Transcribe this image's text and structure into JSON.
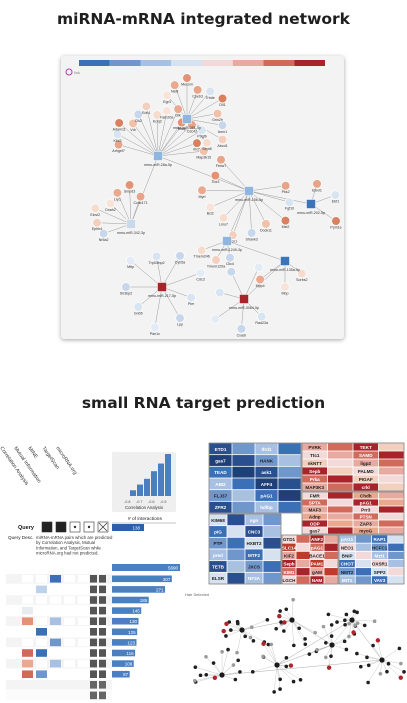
{
  "headings": {
    "network_title": "miRNA-mRNA integrated network",
    "prediction_title": "small RNA target prediction"
  },
  "network": {
    "corner_label": "link",
    "colorbar": [
      "#3b6fb6",
      "#6f97cc",
      "#a8c1e2",
      "#d6e2f0",
      "#f2dada",
      "#e8a9a0",
      "#d26a5c",
      "#a8242b"
    ],
    "hubs": [
      {
        "id": "h1",
        "label": "mmu-miR-28a-5p",
        "color": "#8fb6de"
      },
      {
        "id": "h2",
        "label": "mmu-miR-351-5p",
        "color": "#8fb6de"
      },
      {
        "id": "h3",
        "label": "mmu-miR-15b-5p",
        "color": "#8fb6de"
      },
      {
        "id": "h4",
        "label": "mmu-miR-342-3p",
        "color": "#c9d9ec"
      },
      {
        "id": "h5",
        "label": "mmu-miR-1249-3p",
        "color": "#8fb6de"
      },
      {
        "id": "h6",
        "label": "mmu-miR-202-5p",
        "color": "#3b74b8"
      },
      {
        "id": "h7",
        "label": "mmu-miR-135a-5p",
        "color": "#3b74b8"
      },
      {
        "id": "h8",
        "label": "mmu-miR-217-5p",
        "color": "#a8242b"
      },
      {
        "id": "h9",
        "label": "mmu-miR-3064-5p",
        "color": "#a8242b"
      }
    ],
    "genes": [
      "Arhgef7",
      "Klhl3",
      "Adam11",
      "Vdr",
      "Clk2",
      "Edn1",
      "Kcnj2",
      "Fam20a",
      "Dlk",
      "Mtap",
      "Cdc42",
      "Pdgfb",
      "Ifrd1",
      "Map3k15",
      "Egr3",
      "Nebl",
      "Mecom",
      "Cpeb3",
      "Trhde",
      "Dll1",
      "Grin2b",
      "Amn1",
      "Abcd1",
      "Sept8",
      "Pks2",
      "Fgf10",
      "Mzt2",
      "Dock11",
      "Shank3",
      "Hcn1",
      "Lmo7",
      "Bcl2",
      "Myrf",
      "Tbx3",
      "Fbxw7",
      "Nr5a2",
      "Ephb4",
      "Elovl2",
      "Dnah2",
      "Lrp1",
      "Smpd3",
      "Ccdc171",
      "Clic4",
      "Tmem120a",
      "Tmem246",
      "Elovl1",
      "Ebf1",
      "Ppm1e",
      "Sorbs2",
      "Mbp",
      "Mpp4",
      "Pler",
      "Lpp",
      "Pde1c",
      "Gnb5",
      "Sh3bp2",
      "Mttp",
      "Trp53inp2",
      "Cyb5a",
      "Cdc3",
      "Rad23a",
      "Cxadr"
    ]
  },
  "upset": {
    "column_labels": [
      "Correlation Analysis",
      "Mutual Information",
      "MINE",
      "TargetScan",
      "microRNA.org"
    ],
    "query_label": "Query",
    "query_desc_label": "Query Desc.",
    "query_desc": "miRNA-mRNA pairs which are predicted by Correlation Analysis, Mutual Information, and TargetScan while microRNA.org had not predicted.",
    "interactions_label": "# of interactions",
    "histogram_label": "Correlation Analysis",
    "histogram_ticks": [
      "-0.8",
      "-0.7",
      "-0.6",
      "-0.5"
    ],
    "histogram_values": [
      3,
      6,
      9,
      13,
      17,
      22
    ],
    "query_bar_value": "138",
    "total_value": "5690",
    "bars": [
      {
        "value": "307",
        "fill": 0.88
      },
      {
        "value": "271",
        "fill": 0.78
      },
      {
        "value": "185",
        "fill": 0.54
      },
      {
        "value": "145",
        "fill": 0.43
      },
      {
        "value": "130",
        "fill": 0.39
      },
      {
        "value": "125",
        "fill": 0.37
      },
      {
        "value": "123",
        "fill": 0.36
      },
      {
        "value": "115",
        "fill": 0.34
      },
      {
        "value": "108",
        "fill": 0.32
      },
      {
        "value": "87",
        "fill": 0.26
      }
    ]
  },
  "treemap": {
    "genes": [
      "ETD1",
      "Ifrd1",
      "gas7",
      "HANK",
      "TEAD",
      "ask1",
      "ABI2",
      "AFF4",
      "FLJ37",
      "pAG1",
      "ZFR2",
      "hdlbp",
      "PVRK",
      "TEKT",
      "Ttc1",
      "SAMD",
      "nkNTT",
      "ligp2",
      "Sepb",
      "PALMD",
      "Prka",
      "PIGAF",
      "MAP3K3",
      "crkl",
      "FMR",
      "Chdh",
      "SPTA",
      "pAG1",
      "MAF3",
      "Prr3",
      "Adnp",
      "PTSN",
      "ODP",
      "ZAP3",
      "gas7",
      "myoG",
      "KIM68",
      "ngn",
      "pIG",
      "CNC3",
      "PTP",
      "HXBT2",
      "pred",
      "MTF2",
      "TETB",
      "JXCS",
      "ELSR",
      "NF3A",
      "GTD1",
      "ANF2",
      "SLC14",
      "pAG1",
      "KIF2",
      "BACE1",
      "Sepb",
      "PAM1",
      "KIM1",
      "gAM",
      "LGCH",
      "NAM",
      "pAG1",
      "RAP1",
      "NEO1",
      "HCFC1",
      "BNIP",
      "Mzt1",
      "CHOT",
      "OXSR1",
      "NMT2",
      "SPP2",
      "MIT1",
      "VAV3",
      "SAM2",
      "OVOL1",
      "AIP1",
      "pAG1",
      "DLX3",
      "ZNRF2",
      "pACS2",
      "Lmo7"
    ]
  },
  "graph": {
    "title": "Hair Selected"
  }
}
